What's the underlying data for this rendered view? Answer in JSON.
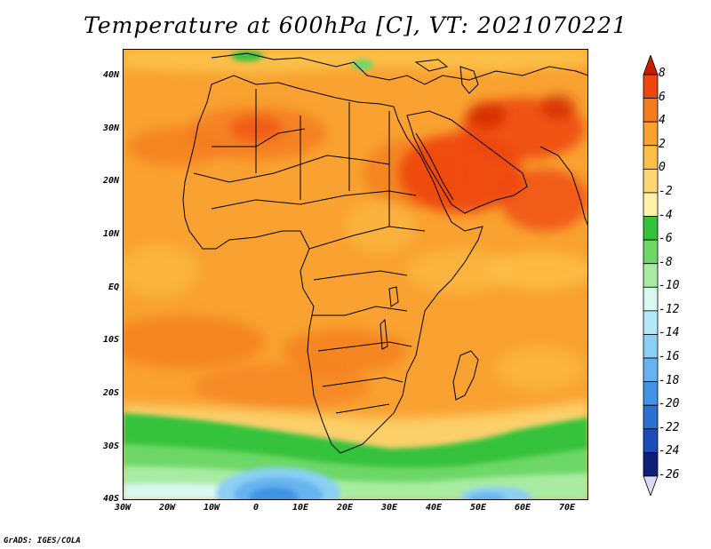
{
  "title": "Temperature at 600hPa [C], VT: 2021070221",
  "credit": "GrADS: IGES/COLA",
  "lat_labels": [
    "40N",
    "30N",
    "20N",
    "10N",
    "EQ",
    "10S",
    "20S",
    "30S",
    "40S"
  ],
  "lon_labels": [
    "30W",
    "20W",
    "10W",
    "0",
    "10E",
    "20E",
    "30E",
    "40E",
    "50E",
    "60E",
    "70E"
  ],
  "colorbar": {
    "labels": [
      "8",
      "6",
      "4",
      "2",
      "0",
      "-2",
      "-4",
      "-6",
      "-8",
      "-10",
      "-12",
      "-14",
      "-16",
      "-18",
      "-20",
      "-22",
      "-24",
      "-26"
    ],
    "colors": [
      "#c81e00",
      "#ee4410",
      "#f47a1e",
      "#f9a231",
      "#fbbf48",
      "#fcd774",
      "#fdf2a8",
      "#34c23c",
      "#6dd868",
      "#a8eba2",
      "#d8f8f0",
      "#b4e8f8",
      "#8ccff4",
      "#66b4ef",
      "#4194e4",
      "#2a6fd2",
      "#1d4bb8",
      "#0f1f7a"
    ]
  },
  "chart_data": {
    "type": "heatmap",
    "title": "Temperature at 600hPa [C], VT: 2021070221",
    "variable": "Temperature at 600hPa",
    "units": "C",
    "valid_time": "2021070221",
    "lon_range": [
      "30W",
      "75E"
    ],
    "lat_range": [
      "40S",
      "45N"
    ],
    "levels": [
      8,
      6,
      4,
      2,
      0,
      -2,
      -4,
      -6,
      -8,
      -10,
      -12,
      -14,
      -16,
      -18,
      -20,
      -22,
      -24,
      -26
    ]
  }
}
